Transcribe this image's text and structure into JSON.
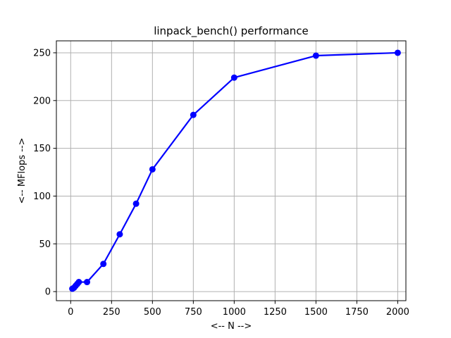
{
  "chart_data": {
    "type": "line",
    "title": "linpack_bench() performance",
    "xlabel": "<-- N -->",
    "ylabel": "<-- MFlops -->",
    "xlim": [
      -87.5,
      2050
    ],
    "ylim": [
      -9.5,
      262.5
    ],
    "xticks": [
      0,
      250,
      500,
      750,
      1000,
      1250,
      1500,
      1750,
      2000
    ],
    "yticks": [
      0,
      50,
      100,
      150,
      200,
      250
    ],
    "xtick_labels": [
      "0",
      "250",
      "500",
      "750",
      "1000",
      "1250",
      "1500",
      "1750",
      "2000"
    ],
    "ytick_labels": [
      "0",
      "50",
      "100",
      "150",
      "200",
      "250"
    ],
    "grid": true,
    "legend": "none",
    "series": [
      {
        "color": "#0000ff",
        "marker": "circle",
        "x": [
          10,
          20,
          30,
          40,
          50,
          100,
          200,
          300,
          400,
          500,
          750,
          1000,
          1500,
          2000
        ],
        "y": [
          3,
          4,
          6,
          8,
          10,
          10,
          29,
          60,
          92,
          128,
          185,
          224,
          247,
          250
        ]
      }
    ]
  }
}
